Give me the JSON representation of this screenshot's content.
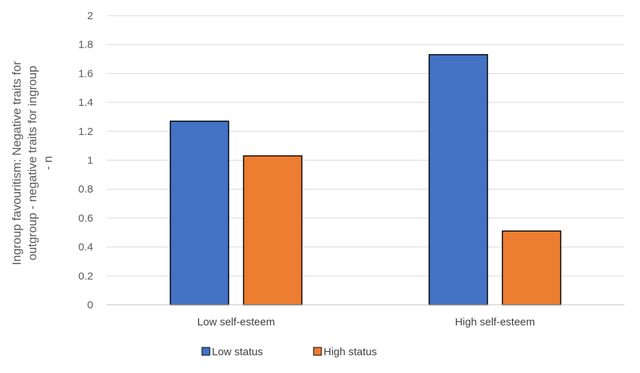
{
  "chart_data": {
    "type": "bar",
    "title": "",
    "xlabel": "",
    "ylabel_lines": [
      "Ingroup favouritism:  Negative traits for",
      "outgroup - negative traits for ingroup",
      "- n"
    ],
    "categories": [
      "Low self-esteem",
      "High self-esteem"
    ],
    "series": [
      {
        "name": "Low status",
        "color": "#4472C4",
        "values": [
          1.27,
          1.73
        ]
      },
      {
        "name": "High status",
        "color": "#ED7D31",
        "values": [
          1.03,
          0.51
        ]
      }
    ],
    "ylim": [
      0,
      2
    ],
    "yticks": [
      "0",
      "0.2",
      "0.4",
      "0.6",
      "0.8",
      "1",
      "1.2",
      "1.4",
      "1.6",
      "1.8",
      "2"
    ],
    "grid": true,
    "legend_position": "bottom"
  }
}
